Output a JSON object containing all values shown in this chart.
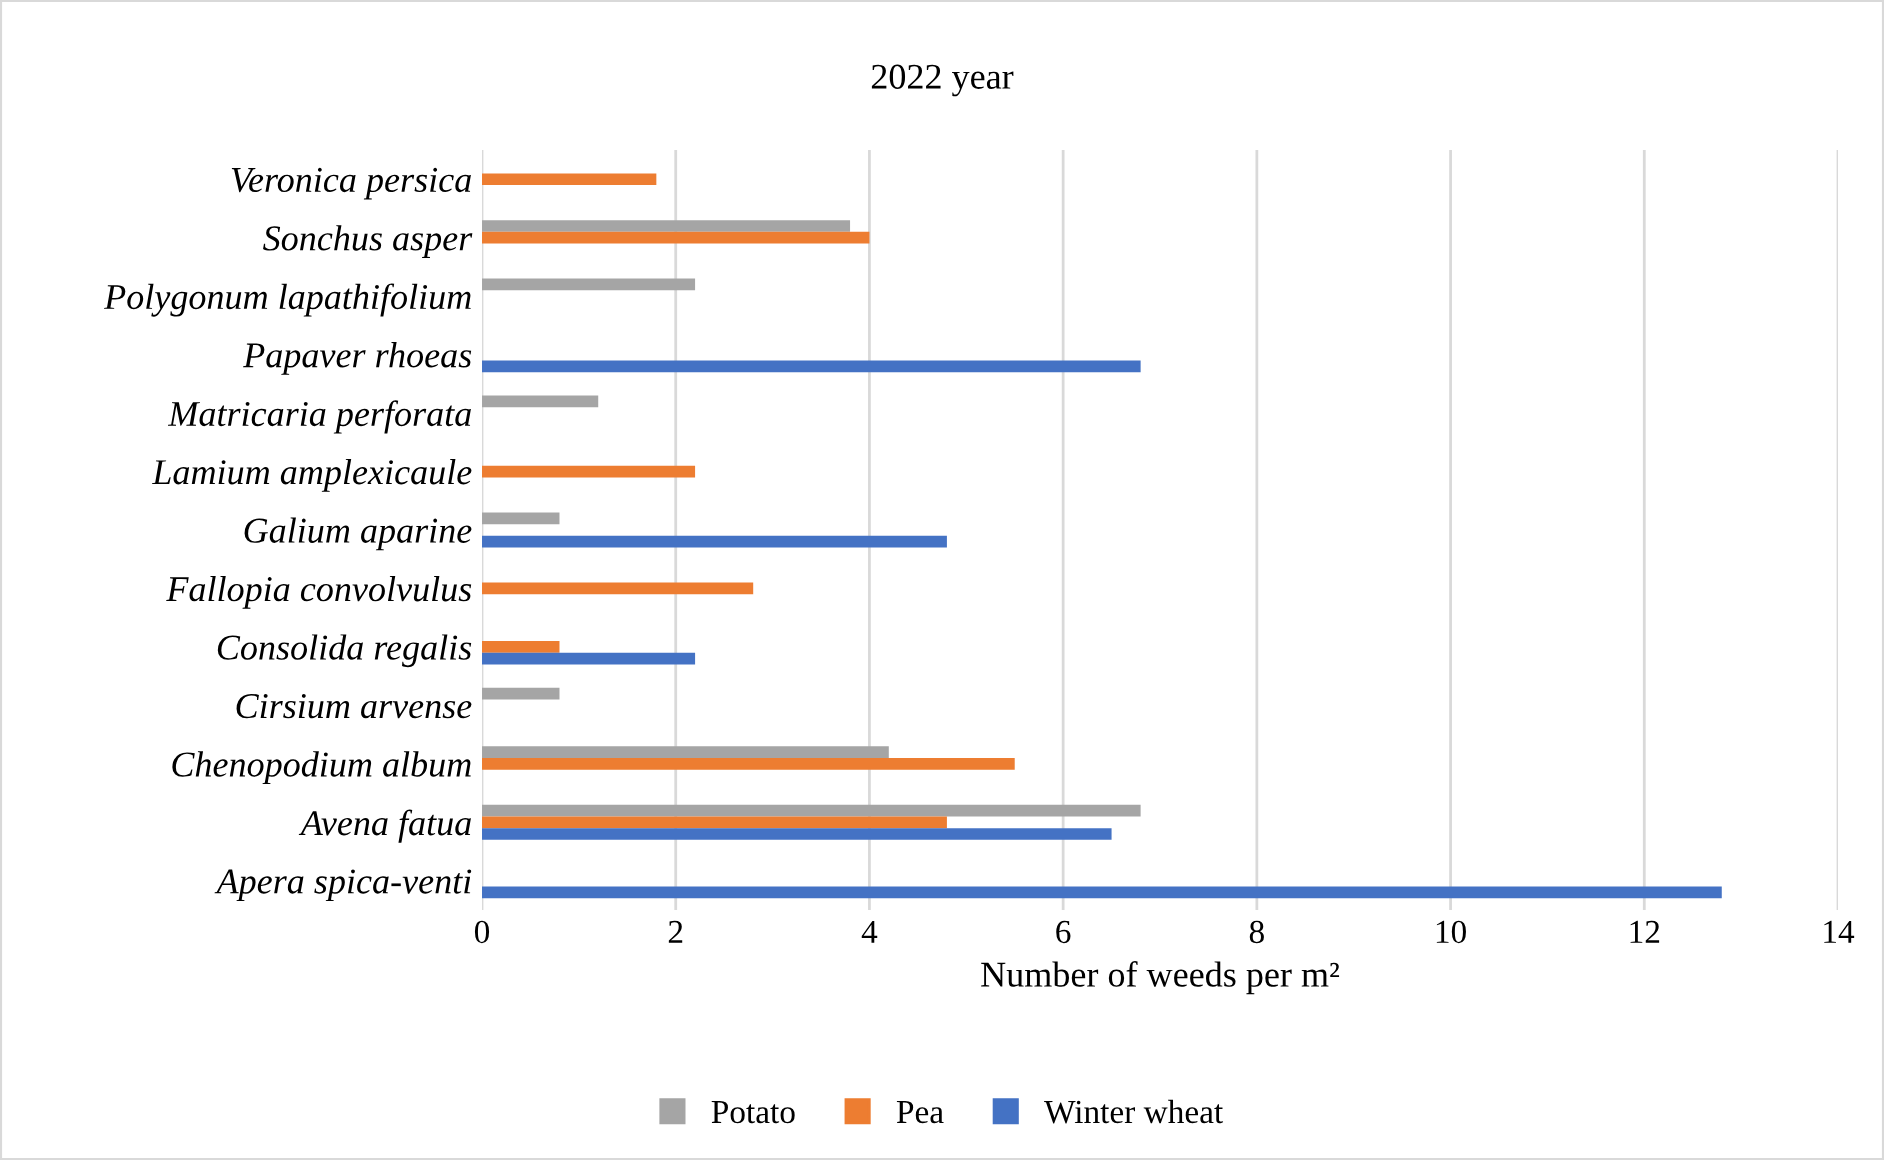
{
  "chart_data": {
    "type": "bar",
    "orientation": "horizontal",
    "title": "2022 year",
    "xlabel": "Number of weeds per m²",
    "categories": [
      "Veronica persica",
      "Sonchus asper",
      "Polygonum lapathifolium",
      "Papaver rhoeas",
      "Matricaria perforata",
      "Lamium amplexicaule",
      "Galium aparine",
      "Fallopia convolvulus",
      "Consolida regalis",
      "Cirsium arvense",
      "Chenopodium album",
      "Avena fatua",
      "Apera spica-venti"
    ],
    "series": [
      {
        "name": "Potato",
        "color": "#a5a5a5",
        "values": [
          null,
          3.8,
          2.2,
          null,
          1.2,
          null,
          0.8,
          null,
          null,
          0.8,
          4.2,
          6.8,
          null
        ]
      },
      {
        "name": "Pea",
        "color": "#ed7d31",
        "values": [
          1.8,
          4.0,
          null,
          null,
          null,
          2.2,
          null,
          2.8,
          0.8,
          null,
          5.5,
          4.8,
          null
        ]
      },
      {
        "name": "Winter wheat",
        "color": "#4472c4",
        "values": [
          null,
          null,
          null,
          6.8,
          null,
          null,
          4.8,
          null,
          2.2,
          null,
          null,
          6.5,
          12.8
        ]
      }
    ],
    "xlim": [
      0,
      14
    ],
    "xticks": [
      0,
      2,
      4,
      6,
      8,
      10,
      12,
      14
    ],
    "grid": "x",
    "legend": "bottom"
  }
}
